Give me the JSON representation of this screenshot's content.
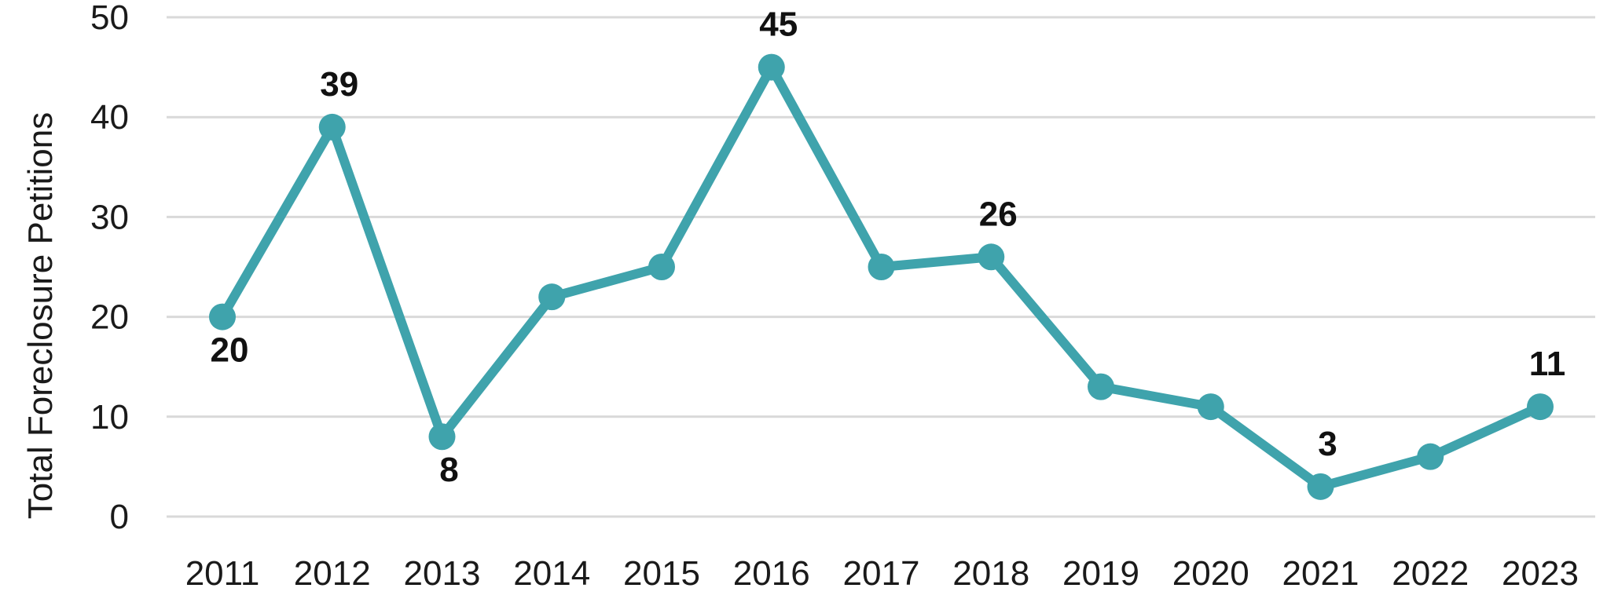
{
  "chart_data": {
    "type": "line",
    "title": "",
    "xlabel": "",
    "ylabel": "Total Foreclosure Petitions",
    "ylim": [
      0,
      50
    ],
    "yticks": [
      "0",
      "10",
      "20",
      "30",
      "40",
      "50"
    ],
    "grid": true,
    "categories": [
      "2011",
      "2012",
      "2013",
      "2014",
      "2015",
      "2016",
      "2017",
      "2018",
      "2019",
      "2020",
      "2021",
      "2022",
      "2023"
    ],
    "series": [
      {
        "values": [
          20,
          39,
          8,
          22,
          25,
          45,
          25,
          26,
          13,
          11,
          3,
          6,
          11
        ],
        "color": "#3fa3ac"
      }
    ],
    "data_labels": [
      {
        "category": "2011",
        "text": "20",
        "position": "below"
      },
      {
        "category": "2012",
        "text": "39",
        "position": "above"
      },
      {
        "category": "2013",
        "text": "8",
        "position": "below"
      },
      {
        "category": "2016",
        "text": "45",
        "position": "above"
      },
      {
        "category": "2018",
        "text": "26",
        "position": "above"
      },
      {
        "category": "2021",
        "text": "3",
        "position": "above"
      },
      {
        "category": "2023",
        "text": "11",
        "position": "above"
      }
    ]
  }
}
